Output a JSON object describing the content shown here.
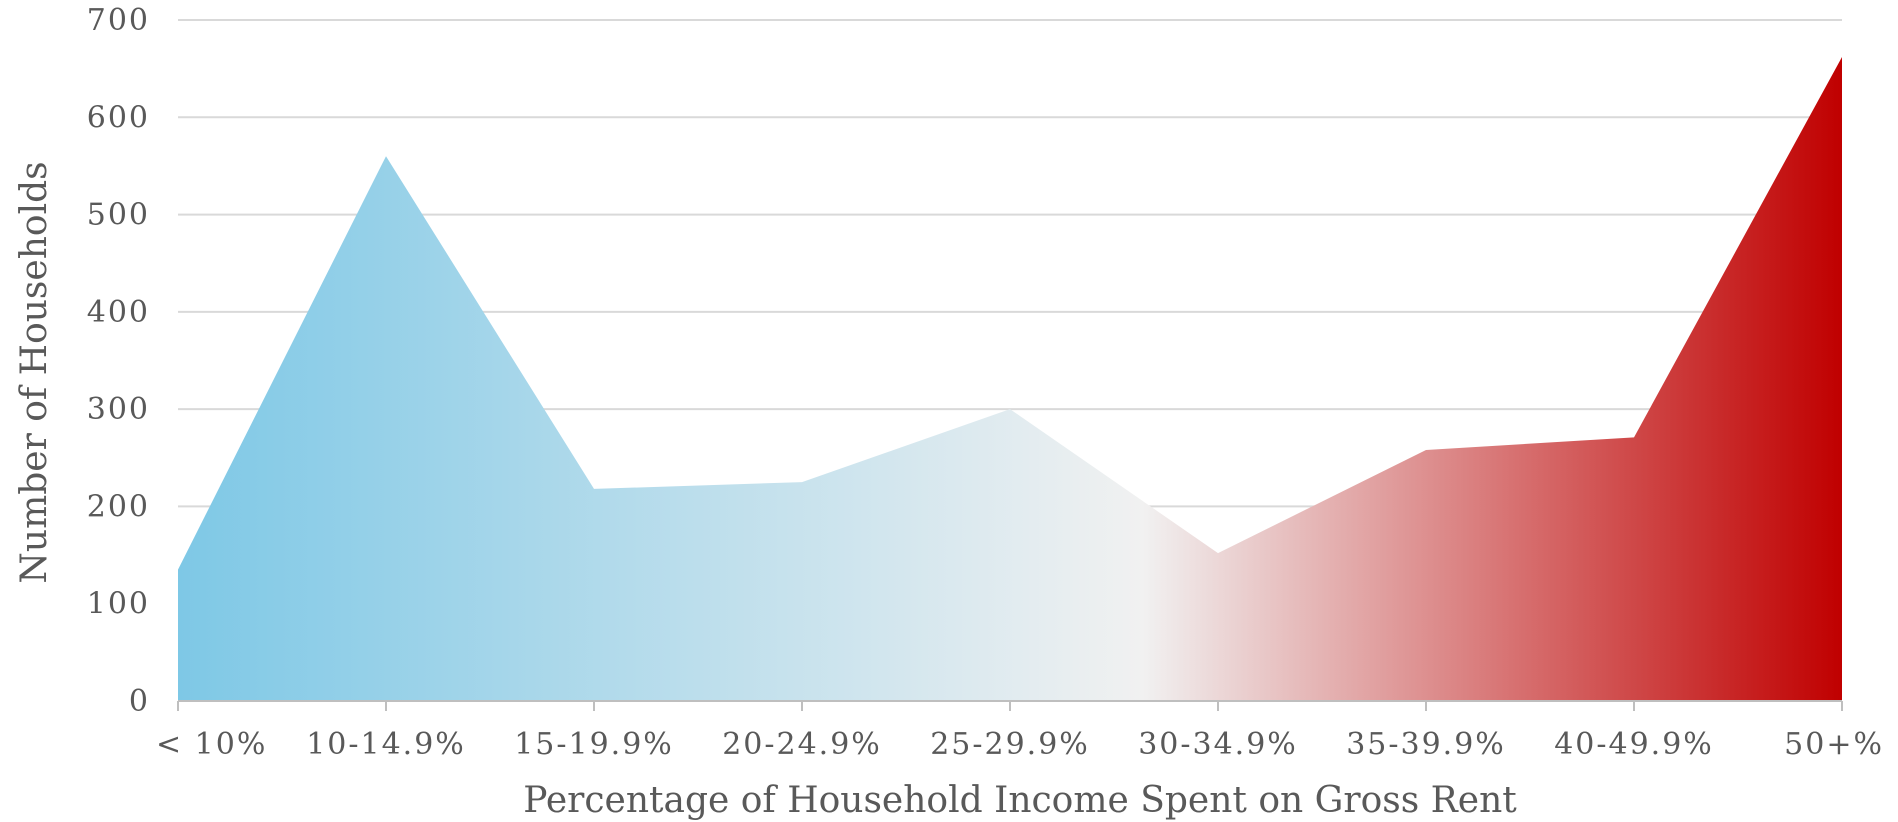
{
  "chart_data": {
    "type": "area",
    "categories": [
      "< 10%",
      "10-14.9%",
      "15-19.9%",
      "20-24.9%",
      "25-29.9%",
      "30-34.9%",
      "35-39.9%",
      "40-49.9%",
      "50+%"
    ],
    "values": [
      135,
      560,
      218,
      225,
      300,
      152,
      258,
      271,
      662
    ],
    "xlabel": "Percentage of Household Income Spent on Gross Rent",
    "ylabel": "Number of Households",
    "ylim": [
      0,
      700
    ],
    "yticks": [
      0,
      100,
      200,
      300,
      400,
      500,
      600,
      700
    ],
    "grid": true,
    "legend": "none",
    "colors": {
      "gradient_start": "#7ec8e6",
      "gradient_mid": "#f1f1f1",
      "gradient_end": "#c00000",
      "grid": "#d9d9d9",
      "text": "#595959"
    }
  }
}
